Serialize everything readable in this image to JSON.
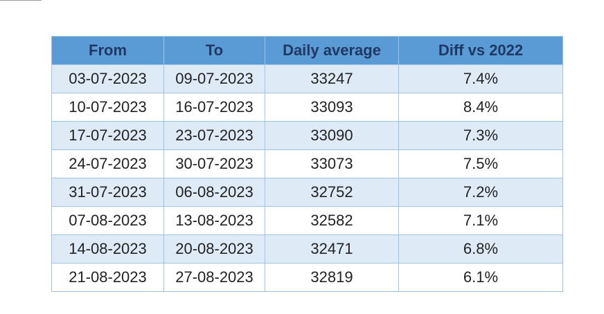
{
  "table": {
    "headers": [
      "From",
      "To",
      "Daily average",
      "Diff vs 2022"
    ],
    "rows": [
      [
        "03-07-2023",
        "09-07-2023",
        "33247",
        "7.4%"
      ],
      [
        "10-07-2023",
        "16-07-2023",
        "33093",
        "8.4%"
      ],
      [
        "17-07-2023",
        "23-07-2023",
        "33090",
        "7.3%"
      ],
      [
        "24-07-2023",
        "30-07-2023",
        "33073",
        "7.5%"
      ],
      [
        "31-07-2023",
        "06-08-2023",
        "32752",
        "7.2%"
      ],
      [
        "07-08-2023",
        "13-08-2023",
        "32582",
        "7.1%"
      ],
      [
        "14-08-2023",
        "20-08-2023",
        "32471",
        "6.8%"
      ],
      [
        "21-08-2023",
        "27-08-2023",
        "32819",
        "6.1%"
      ]
    ]
  },
  "colors": {
    "header_bg": "#5b9bd5",
    "header_text": "#1f3864",
    "band_bg": "#deebf7",
    "border": "#9dc3e6"
  }
}
